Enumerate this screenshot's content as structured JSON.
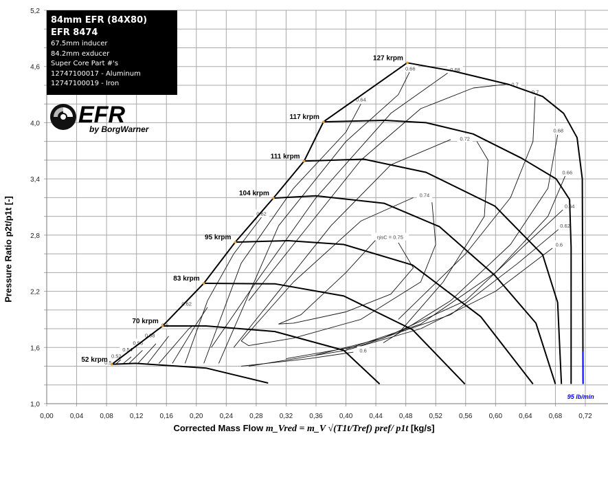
{
  "infobox": {
    "title": "84mm EFR  (84X80)",
    "model": "EFR 8474",
    "lines": [
      "67.5mm inducer",
      "84.2mm exducer",
      "Super Core Part #'s",
      "12747100017 - Aluminum",
      "12747100019 - Iron"
    ]
  },
  "logo": {
    "text": "EFR",
    "subtext": "by BorgWarner"
  },
  "chart_data": {
    "type": "line",
    "title": "",
    "xlabel": "Corrected Mass Flow",
    "xlabel_formula": "m_Vred = m_V √(T1t/Tref) pref/ p1t",
    "xlabel_unit": "[kg/s]",
    "ylabel": "Pressure Ratio p2t/p1t [-]",
    "xlim": [
      0,
      0.75
    ],
    "ylim": [
      1.0,
      5.2
    ],
    "grid": true,
    "x_ticks": [
      "0,00",
      "0,04",
      "0,08",
      "0,12",
      "0,16",
      "0,20",
      "0,24",
      "0,28",
      "0,32",
      "0,36",
      "0,40",
      "0,44",
      "0,48",
      "0,52",
      "0,56",
      "0,60",
      "0,64",
      "0,68",
      "0,72"
    ],
    "y_ticks": [
      "1,0",
      "1,6",
      "2,2",
      "2,8",
      "3,4",
      "4,0",
      "4,6",
      "5,2"
    ],
    "speed_lines": [
      {
        "name": "52 krpm",
        "points": [
          [
            0.087,
            1.42
          ],
          [
            0.119,
            1.43
          ],
          [
            0.213,
            1.38
          ],
          [
            0.296,
            1.22
          ]
        ]
      },
      {
        "name": "70 krpm",
        "points": [
          [
            0.155,
            1.83
          ],
          [
            0.213,
            1.83
          ],
          [
            0.305,
            1.77
          ],
          [
            0.397,
            1.57
          ],
          [
            0.445,
            1.21
          ]
        ]
      },
      {
        "name": "83 krpm",
        "points": [
          [
            0.21,
            2.285
          ],
          [
            0.305,
            2.28
          ],
          [
            0.397,
            2.15
          ],
          [
            0.489,
            1.79
          ],
          [
            0.559,
            1.21
          ]
        ]
      },
      {
        "name": "95 krpm",
        "points": [
          [
            0.252,
            2.725
          ],
          [
            0.323,
            2.74
          ],
          [
            0.397,
            2.7
          ],
          [
            0.489,
            2.48
          ],
          [
            0.58,
            1.93
          ],
          [
            0.65,
            1.21
          ]
        ]
      },
      {
        "name": "104 krpm",
        "points": [
          [
            0.303,
            3.195
          ],
          [
            0.36,
            3.22
          ],
          [
            0.451,
            3.14
          ],
          [
            0.525,
            2.89
          ],
          [
            0.599,
            2.37
          ],
          [
            0.654,
            1.86
          ],
          [
            0.68,
            1.21
          ]
        ]
      },
      {
        "name": "111 krpm",
        "points": [
          [
            0.344,
            3.59
          ],
          [
            0.424,
            3.61
          ],
          [
            0.507,
            3.47
          ],
          [
            0.599,
            3.11
          ],
          [
            0.663,
            2.59
          ],
          [
            0.683,
            2.08
          ],
          [
            0.688,
            1.21
          ]
        ]
      },
      {
        "name": "117 krpm",
        "points": [
          [
            0.37,
            4.01
          ],
          [
            0.452,
            4.025
          ],
          [
            0.507,
            4.0
          ],
          [
            0.57,
            3.88
          ],
          [
            0.635,
            3.62
          ],
          [
            0.681,
            3.4
          ],
          [
            0.699,
            3.18
          ],
          [
            0.701,
            2.67
          ],
          [
            0.701,
            1.21
          ]
        ]
      },
      {
        "name": "127 krpm",
        "points": [
          [
            0.482,
            4.64
          ],
          [
            0.544,
            4.55
          ],
          [
            0.617,
            4.41
          ],
          [
            0.663,
            4.28
          ],
          [
            0.691,
            4.1
          ],
          [
            0.709,
            3.84
          ],
          [
            0.716,
            3.4
          ],
          [
            0.717,
            1.21
          ]
        ]
      }
    ],
    "surge_line": [
      [
        0.087,
        1.42
      ],
      [
        0.155,
        1.83
      ],
      [
        0.21,
        2.285
      ],
      [
        0.252,
        2.725
      ],
      [
        0.303,
        3.195
      ],
      [
        0.344,
        3.59
      ],
      [
        0.37,
        4.01
      ],
      [
        0.482,
        4.64
      ]
    ],
    "efficiency_contours": [
      {
        "label": "0.5",
        "label_at": [
          0.082,
          1.44
        ],
        "points": [
          [
            0.092,
            1.42
          ],
          [
            0.099,
            1.47
          ]
        ]
      },
      {
        "label": "0.52",
        "label_at": [
          0.093,
          1.51
        ],
        "points": [
          [
            0.101,
            1.42
          ],
          [
            0.113,
            1.5
          ]
        ]
      },
      {
        "label": "0.54",
        "label_at": [
          0.108,
          1.58
        ],
        "points": [
          [
            0.11,
            1.43
          ],
          [
            0.128,
            1.57
          ]
        ]
      },
      {
        "label": "0.56",
        "label_at": [
          0.122,
          1.65
        ],
        "points": [
          [
            0.122,
            1.43
          ],
          [
            0.146,
            1.64
          ]
        ]
      },
      {
        "label": "0.58",
        "label_at": [
          0.138,
          1.73
        ],
        "points": [
          [
            0.135,
            1.43
          ],
          [
            0.163,
            1.72
          ]
        ]
      },
      {
        "label": "0.6",
        "label_at": [
          0.158,
          1.84
        ],
        "points": [
          [
            0.15,
            1.43
          ],
          [
            0.19,
            1.8
          ],
          [
            0.195,
            1.83
          ]
        ]
      },
      {
        "label": "0.62",
        "label_at": [
          0.187,
          2.07
        ],
        "points": [
          [
            0.168,
            1.43
          ],
          [
            0.2,
            1.85
          ],
          [
            0.215,
            2.03
          ]
        ]
      },
      {
        "label": "0.62",
        "label_at": [
          0.287,
          3.03
        ],
        "points": [
          [
            0.287,
            2.99
          ],
          [
            0.25,
            2.6
          ],
          [
            0.215,
            2.1
          ],
          [
            0.185,
            1.43
          ]
        ]
      },
      {
        "label": "0.64",
        "label_at": [
          0.42,
          4.25
        ],
        "points": [
          [
            0.42,
            4.2
          ],
          [
            0.4,
            3.9
          ],
          [
            0.33,
            3.3
          ],
          [
            0.26,
            2.5
          ],
          [
            0.21,
            1.43
          ]
        ]
      },
      {
        "label": "0.66",
        "label_at": [
          0.486,
          4.58
        ],
        "points": [
          [
            0.485,
            4.54
          ],
          [
            0.47,
            4.3
          ],
          [
            0.4,
            3.8
          ],
          [
            0.31,
            2.9
          ],
          [
            0.23,
            1.43
          ]
        ]
      },
      {
        "label": "0.68",
        "label_at": [
          0.546,
          4.57
        ],
        "points": [
          [
            0.536,
            4.53
          ],
          [
            0.46,
            4.1
          ],
          [
            0.36,
            3.2
          ],
          [
            0.28,
            2.3
          ],
          [
            0.22,
            1.6
          ]
        ]
      },
      {
        "label": "0.7",
        "label_at": [
          0.626,
          4.41
        ],
        "points": [
          [
            0.614,
            4.41
          ],
          [
            0.57,
            4.37
          ],
          [
            0.5,
            4.15
          ],
          [
            0.42,
            3.6
          ],
          [
            0.34,
            2.8
          ],
          [
            0.27,
            2.1
          ]
        ]
      },
      {
        "label": "0.72",
        "label_at": [
          0.559,
          3.83
        ],
        "points": [
          [
            0.54,
            3.82
          ],
          [
            0.46,
            3.55
          ],
          [
            0.38,
            2.9
          ],
          [
            0.3,
            2.1
          ],
          [
            0.25,
            1.6
          ]
        ]
      },
      {
        "label": "0.74",
        "label_at": [
          0.505,
          3.23
        ],
        "points": [
          [
            0.49,
            3.2
          ],
          [
            0.42,
            2.95
          ],
          [
            0.33,
            2.3
          ],
          [
            0.26,
            1.67
          ],
          [
            0.27,
            1.62
          ],
          [
            0.33,
            1.7
          ],
          [
            0.42,
            1.9
          ],
          [
            0.5,
            2.3
          ],
          [
            0.52,
            2.7
          ],
          [
            0.515,
            3.15
          ]
        ]
      },
      {
        "label": "ηisC = 0.75",
        "label_at": [
          0.459,
          2.78
        ],
        "points": [
          [
            0.44,
            2.75
          ],
          [
            0.4,
            2.4
          ],
          [
            0.34,
            1.95
          ],
          [
            0.31,
            1.85
          ],
          [
            0.33,
            1.86
          ],
          [
            0.4,
            1.98
          ],
          [
            0.46,
            2.17
          ],
          [
            0.49,
            2.45
          ],
          [
            0.47,
            2.72
          ]
        ]
      },
      {
        "label": "0.7",
        "label_at": [
          0.653,
          4.33
        ],
        "points": [
          [
            0.653,
            4.28
          ],
          [
            0.65,
            3.8
          ],
          [
            0.62,
            3.2
          ],
          [
            0.56,
            2.6
          ],
          [
            0.47,
            1.9
          ]
        ]
      },
      {
        "label": "0.72",
        "label_at": null,
        "points": [
          [
            0.575,
            3.8
          ],
          [
            0.59,
            3.6
          ],
          [
            0.585,
            3.0
          ],
          [
            0.53,
            2.3
          ],
          [
            0.47,
            1.75
          ]
        ]
      },
      {
        "label": "0.68",
        "label_at": [
          0.684,
          3.92
        ],
        "points": [
          [
            0.683,
            3.87
          ],
          [
            0.67,
            3.3
          ],
          [
            0.62,
            2.7
          ],
          [
            0.54,
            2.1
          ],
          [
            0.45,
            1.65
          ]
        ]
      },
      {
        "label": "0.66",
        "label_at": [
          0.696,
          3.47
        ],
        "points": [
          [
            0.693,
            3.43
          ],
          [
            0.67,
            3.0
          ],
          [
            0.6,
            2.4
          ],
          [
            0.5,
            1.85
          ],
          [
            0.4,
            1.58
          ]
        ]
      },
      {
        "label": "0.64",
        "label_at": [
          0.699,
          3.11
        ],
        "points": [
          [
            0.69,
            3.07
          ],
          [
            0.64,
            2.7
          ],
          [
            0.56,
            2.1
          ],
          [
            0.45,
            1.7
          ],
          [
            0.36,
            1.52
          ]
        ]
      },
      {
        "label": "0.62",
        "label_at": [
          0.693,
          2.9
        ],
        "points": [
          [
            0.684,
            2.86
          ],
          [
            0.63,
            2.5
          ],
          [
            0.54,
            1.95
          ],
          [
            0.42,
            1.62
          ],
          [
            0.32,
            1.48
          ]
        ]
      },
      {
        "label": "0.6",
        "label_at": [
          0.685,
          2.7
        ],
        "points": [
          [
            0.676,
            2.66
          ],
          [
            0.6,
            2.2
          ],
          [
            0.5,
            1.8
          ],
          [
            0.4,
            1.57
          ],
          [
            0.27,
            1.4
          ]
        ]
      },
      {
        "label": "0.6",
        "label_at": [
          0.423,
          1.57
        ],
        "points": [
          [
            0.26,
            1.4
          ],
          [
            0.35,
            1.48
          ],
          [
            0.41,
            1.55
          ]
        ]
      }
    ],
    "max_flow_marker": {
      "label": "95 lb/min",
      "x": 0.717,
      "y_range": [
        1.21,
        1.56
      ],
      "color": "#0000ff"
    }
  }
}
